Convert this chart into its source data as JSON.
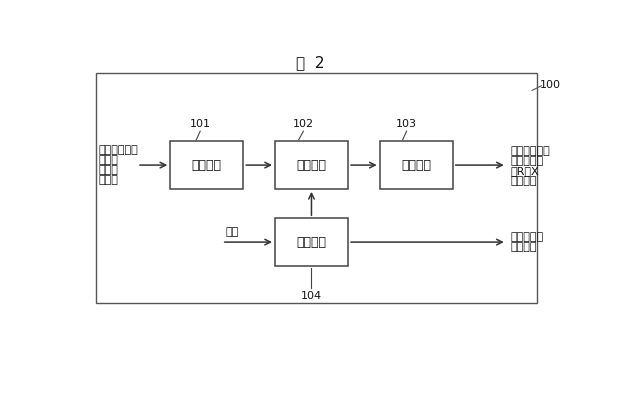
{
  "title": "図  2",
  "title_fontsize": 11,
  "bg_color": "#ffffff",
  "box_color": "#ffffff",
  "box_edge_color": "#444444",
  "text_color": "#111111",
  "outer_box_edge": "#555555",
  "label_100": "100",
  "label_101": "101",
  "label_102": "102",
  "label_103": "103",
  "label_104": "104",
  "box1_label": "入力手段",
  "box2_label": "計算手段",
  "box3_label": "出力手段",
  "box4_label": "判定手段",
  "left_text_line1": "送り出し側の",
  "left_text_line2": "・電圧",
  "left_text_line3": "・電流",
  "left_text_line4": "・力率",
  "right_top_line1": "負荷点までの",
  "right_top_line2": "・電圧降下",
  "right_top_line3": "・R、X",
  "right_top_line4": "・相差角",
  "right_bot_line1": "計算可否の",
  "right_bot_line2": "判定結果",
  "choryuu_label": "潮流",
  "font_size_box": 9,
  "font_size_label": 8,
  "font_size_side": 8,
  "font_size_ref": 8
}
